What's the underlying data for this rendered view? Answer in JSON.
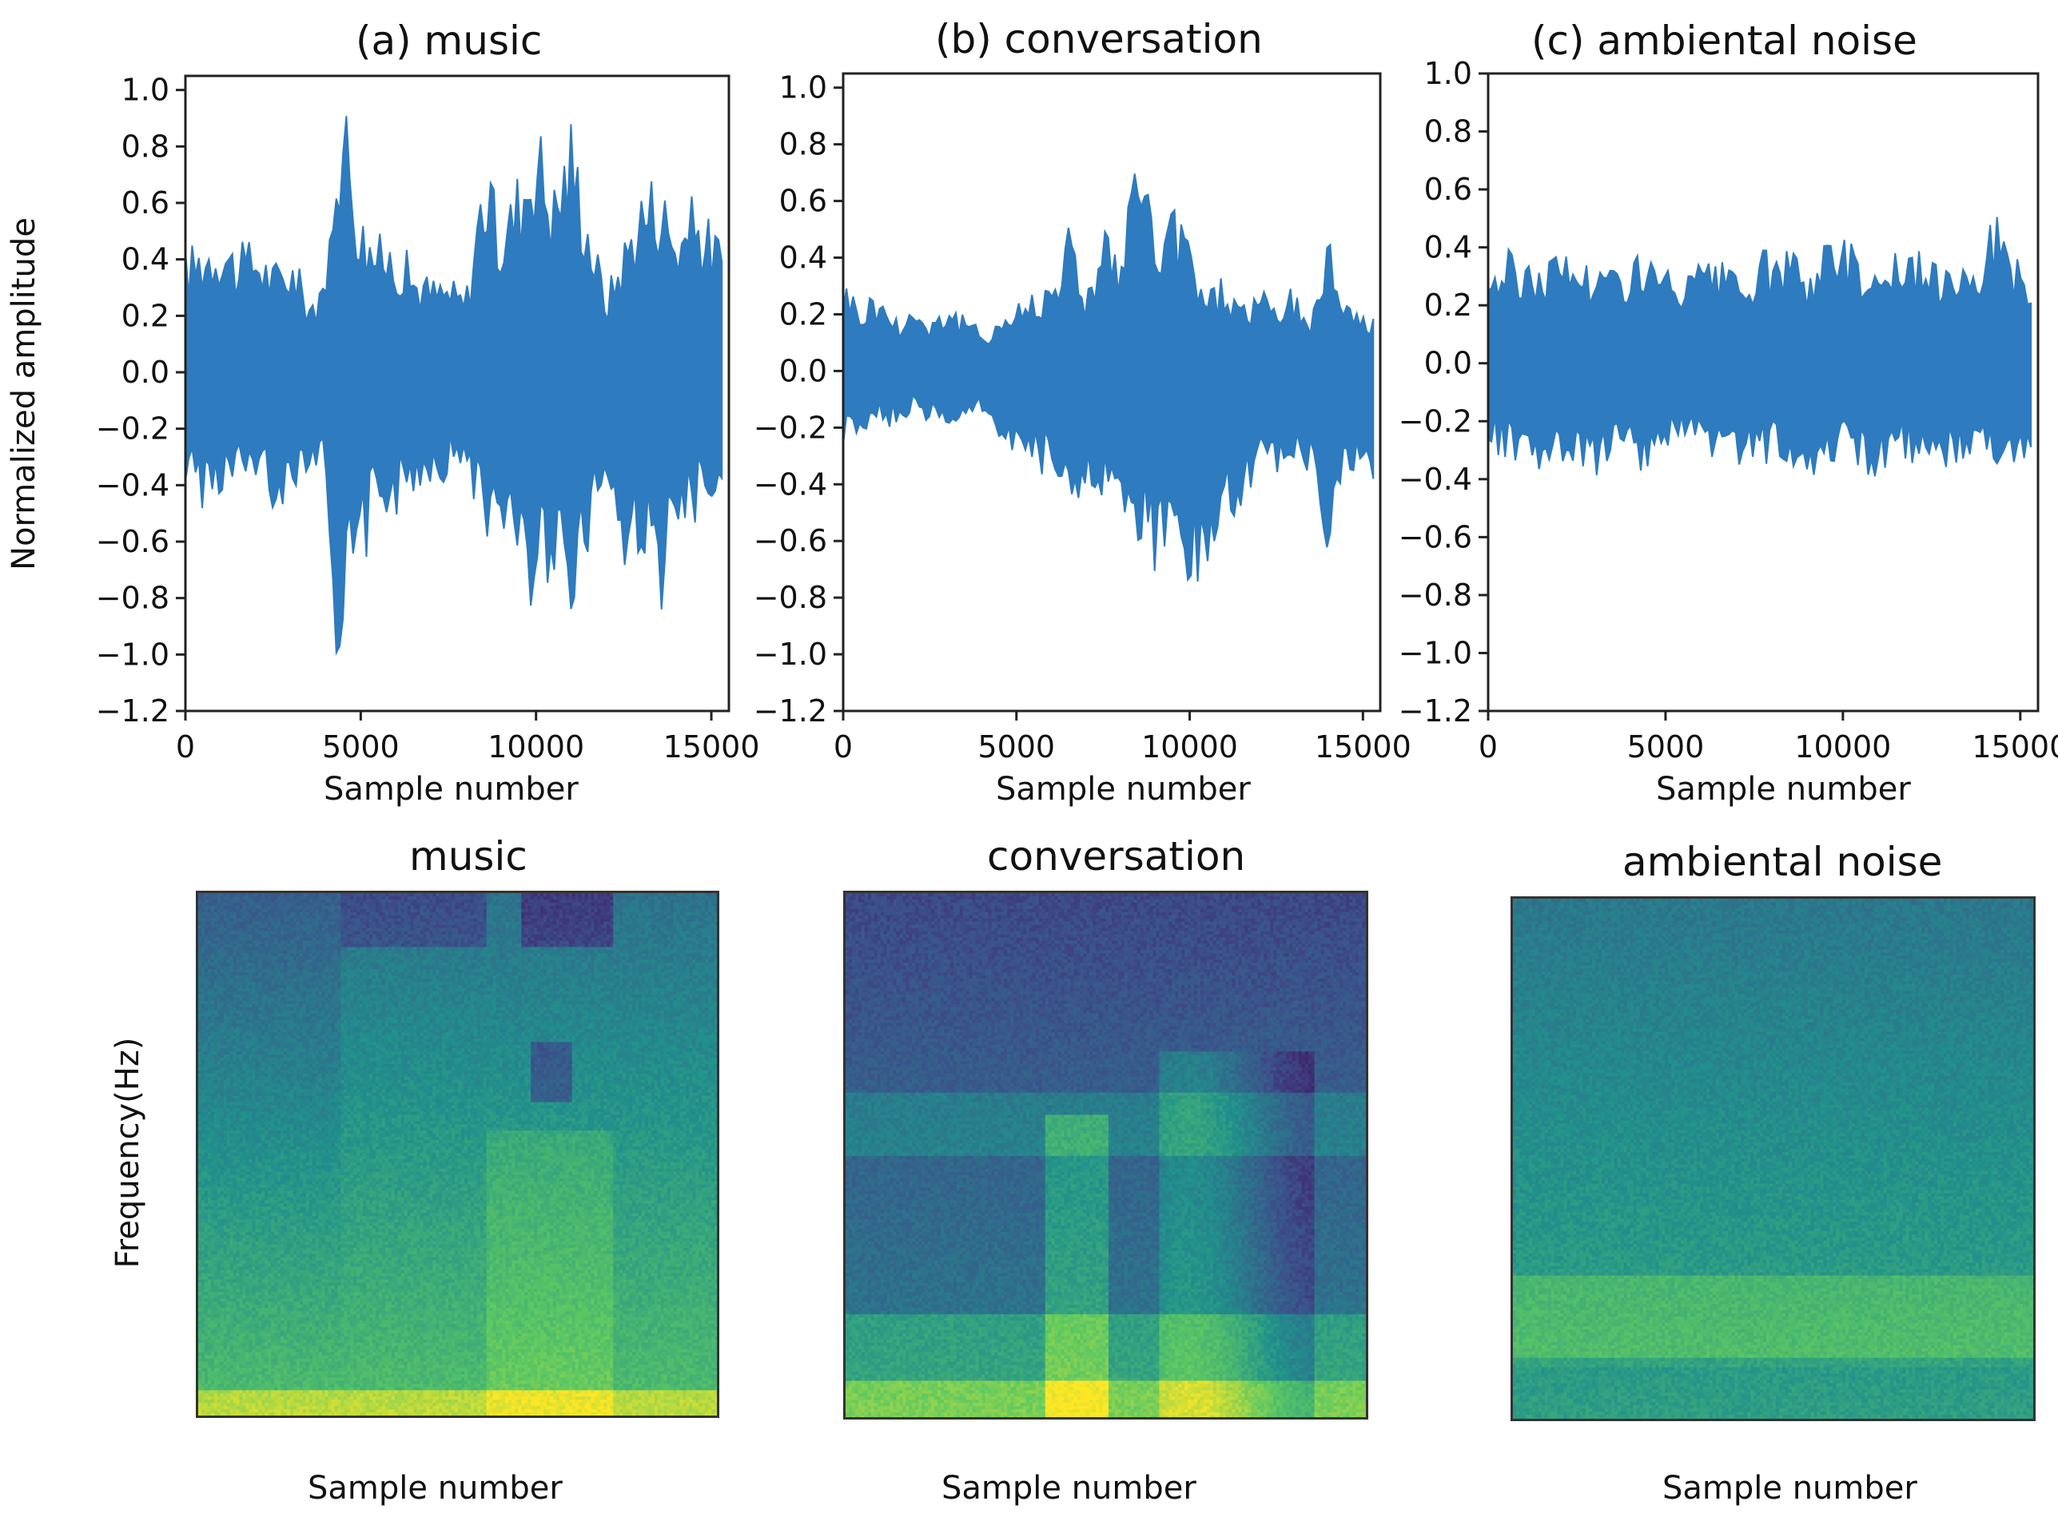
{
  "chart_data": [
    {
      "type": "line",
      "title": "(a) music",
      "xlabel": "Sample number",
      "ylabel": "Normalized amplitude",
      "xlim": [
        0,
        15500
      ],
      "ylim": [
        -1.2,
        1.05
      ],
      "xticks": [
        0,
        5000,
        10000,
        15000
      ],
      "yticks": [
        1.0,
        0.8,
        0.6,
        0.4,
        0.2,
        0.0,
        -0.2,
        -0.4,
        -0.6,
        -0.8,
        -1.0,
        -1.2
      ],
      "xtick_labels": [
        "0",
        "5000",
        "10000",
        "15000"
      ],
      "ytick_labels": [
        "1.0",
        "0.8",
        "0.6",
        "0.4",
        "0.2",
        "0.0",
        "−0.2",
        "−0.4",
        "−0.6",
        "−0.8",
        "−1.0",
        "−1.2"
      ],
      "color": "#2e7bbf",
      "envelope": {
        "x": [
          0,
          500,
          1000,
          1500,
          2000,
          2500,
          3000,
          3500,
          4000,
          4300,
          4600,
          5000,
          5500,
          6000,
          6500,
          7000,
          7500,
          8000,
          8500,
          9000,
          9500,
          10000,
          10500,
          11000,
          11500,
          12000,
          12500,
          13000,
          13500,
          14000,
          14500,
          15000,
          15300
        ],
        "upper": [
          0.45,
          0.5,
          0.55,
          0.45,
          0.5,
          0.4,
          0.45,
          0.3,
          0.3,
          1.02,
          1.0,
          0.6,
          0.5,
          0.5,
          0.4,
          0.35,
          0.35,
          0.3,
          0.8,
          0.55,
          0.75,
          0.97,
          0.7,
          0.95,
          0.6,
          0.3,
          0.5,
          0.7,
          0.75,
          0.55,
          0.65,
          0.55,
          0.5
        ],
        "lower": [
          -0.4,
          -0.5,
          -0.45,
          -0.45,
          -0.4,
          -0.5,
          -0.45,
          -0.35,
          -0.4,
          -1.0,
          -0.95,
          -0.75,
          -0.5,
          -0.55,
          -0.45,
          -0.4,
          -0.4,
          -0.35,
          -0.6,
          -0.55,
          -0.8,
          -0.85,
          -0.7,
          -0.88,
          -0.65,
          -0.4,
          -0.8,
          -0.65,
          -0.9,
          -0.7,
          -0.55,
          -0.45,
          -0.4
        ]
      }
    },
    {
      "type": "line",
      "title": "(b) conversation",
      "xlabel": "Sample number",
      "ylabel": "",
      "xlim": [
        0,
        15500
      ],
      "ylim": [
        -1.2,
        1.05
      ],
      "xticks": [
        0,
        5000,
        10000,
        15000
      ],
      "yticks": [
        1.0,
        0.8,
        0.6,
        0.4,
        0.2,
        0.0,
        -0.2,
        -0.4,
        -0.6,
        -0.8,
        -1.0,
        -1.2
      ],
      "xtick_labels": [
        "0",
        "5000",
        "10000",
        "15000"
      ],
      "ytick_labels": [
        "1.0",
        "0.8",
        "0.6",
        "0.4",
        "0.2",
        "0.0",
        "−0.2",
        "−0.4",
        "−0.6",
        "−0.8",
        "−1.0",
        "−1.2"
      ],
      "color": "#2e7bbf",
      "envelope": {
        "x": [
          0,
          500,
          1000,
          1500,
          2000,
          2500,
          3000,
          3500,
          4000,
          4500,
          5000,
          5500,
          6000,
          6500,
          7000,
          7500,
          8000,
          8300,
          8600,
          9000,
          9500,
          10000,
          10500,
          11000,
          11500,
          12000,
          12500,
          13000,
          13500,
          14000,
          14500,
          15000,
          15300
        ],
        "upper": [
          0.35,
          0.25,
          0.3,
          0.2,
          0.25,
          0.2,
          0.25,
          0.2,
          0.15,
          0.2,
          0.25,
          0.3,
          0.35,
          0.55,
          0.3,
          0.55,
          0.4,
          0.65,
          0.97,
          0.45,
          0.6,
          0.5,
          0.3,
          0.35,
          0.25,
          0.3,
          0.25,
          0.3,
          0.2,
          0.5,
          0.3,
          0.2,
          0.25
        ],
        "lower": [
          -0.28,
          -0.25,
          -0.2,
          -0.2,
          -0.15,
          -0.2,
          -0.2,
          -0.2,
          -0.15,
          -0.25,
          -0.3,
          -0.35,
          -0.4,
          -0.45,
          -0.5,
          -0.5,
          -0.55,
          -0.6,
          -0.6,
          -0.8,
          -0.55,
          -0.8,
          -0.85,
          -0.6,
          -0.55,
          -0.4,
          -0.45,
          -0.4,
          -0.35,
          -0.75,
          -0.4,
          -0.35,
          -0.4
        ]
      }
    },
    {
      "type": "line",
      "title": "(c) ambiental noise",
      "xlabel": "Sample number",
      "ylabel": "",
      "xlim": [
        0,
        15500
      ],
      "ylim": [
        -1.2,
        1.0
      ],
      "xticks": [
        0,
        5000,
        10000,
        15000
      ],
      "yticks": [
        1.0,
        0.8,
        0.6,
        0.4,
        0.2,
        0.0,
        -0.2,
        -0.4,
        -0.6,
        -0.8,
        -1.0,
        -1.2
      ],
      "xtick_labels": [
        "0",
        "5000",
        "10000",
        "15000"
      ],
      "ytick_labels": [
        "1.0",
        "0.8",
        "0.6",
        "0.4",
        "0.2",
        "0.0",
        "−0.2",
        "−0.4",
        "−0.6",
        "−0.8",
        "−1.0",
        "−1.2"
      ],
      "color": "#2e7bbf",
      "envelope": {
        "x": [
          0,
          600,
          1200,
          1800,
          2400,
          3000,
          3600,
          4200,
          4800,
          5400,
          6000,
          6600,
          7200,
          7800,
          8400,
          9000,
          9600,
          10200,
          10800,
          11400,
          12000,
          12600,
          13200,
          13800,
          14400,
          15000,
          15300
        ],
        "upper": [
          0.35,
          0.4,
          0.35,
          0.4,
          0.4,
          0.35,
          0.35,
          0.4,
          0.35,
          0.3,
          0.35,
          0.35,
          0.3,
          0.4,
          0.4,
          0.35,
          0.45,
          0.45,
          0.35,
          0.4,
          0.4,
          0.35,
          0.4,
          0.4,
          0.55,
          0.35,
          0.3
        ],
        "lower": [
          -0.3,
          -0.35,
          -0.4,
          -0.35,
          -0.35,
          -0.4,
          -0.35,
          -0.4,
          -0.35,
          -0.3,
          -0.35,
          -0.35,
          -0.4,
          -0.35,
          -0.35,
          -0.4,
          -0.35,
          -0.35,
          -0.4,
          -0.35,
          -0.35,
          -0.35,
          -0.4,
          -0.35,
          -0.35,
          -0.35,
          -0.3
        ]
      }
    },
    {
      "type": "heatmap",
      "title": "music",
      "xlabel": "Sample number",
      "ylabel": "Frequency(Hz)",
      "colormap": "viridis",
      "profile": "music"
    },
    {
      "type": "heatmap",
      "title": "conversation",
      "xlabel": "Sample number",
      "ylabel": "",
      "colormap": "viridis",
      "profile": "conversation"
    },
    {
      "type": "heatmap",
      "title": "ambiental noise",
      "xlabel": "Sample number",
      "ylabel": "",
      "colormap": "viridis",
      "profile": "noise"
    }
  ]
}
